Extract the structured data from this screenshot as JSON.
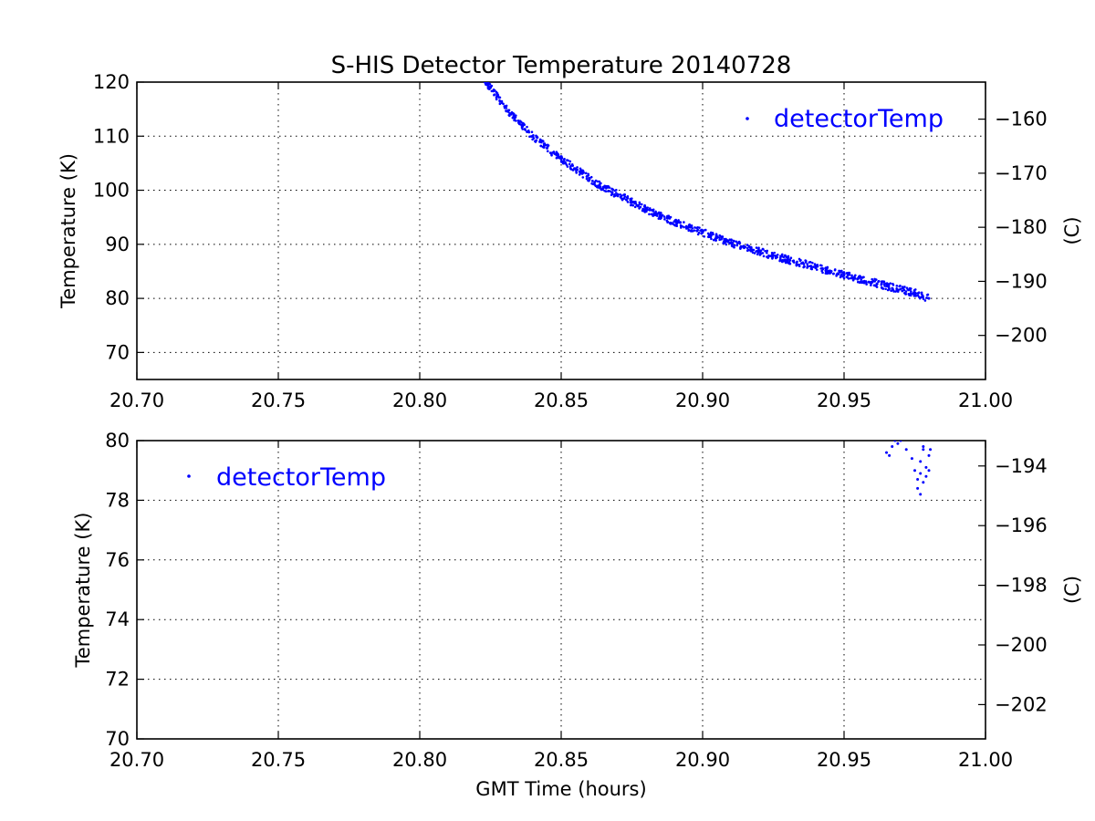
{
  "chart_data": [
    {
      "type": "scatter",
      "title": "S-HIS Detector Temperature 20140728",
      "xlabel": "",
      "ylabel": "Temperature (K)",
      "ylabel_right": "(C)",
      "xlim": [
        20.7,
        21.0
      ],
      "ylim": [
        65,
        120
      ],
      "xticks": [
        "20.70",
        "20.75",
        "20.80",
        "20.85",
        "20.90",
        "20.95",
        "21.00"
      ],
      "yticks": [
        "70",
        "80",
        "90",
        "100",
        "110",
        "120"
      ],
      "yticks_right": [
        "−160",
        "−170",
        "−180",
        "−190",
        "−200"
      ],
      "grid": true,
      "legend": {
        "location": "upper right",
        "entries": [
          "detectorTemp"
        ]
      },
      "series": [
        {
          "name": "detectorTemp",
          "color": "#0000ff",
          "marker": "point",
          "x": [
            20.823,
            20.825,
            20.83,
            20.835,
            20.84,
            20.845,
            20.85,
            20.855,
            20.86,
            20.865,
            20.87,
            20.875,
            20.88,
            20.885,
            20.89,
            20.895,
            20.9,
            20.905,
            20.91,
            20.915,
            20.92,
            20.925,
            20.93,
            20.935,
            20.94,
            20.945,
            20.95,
            20.955,
            20.96,
            20.965,
            20.97,
            20.975,
            20.98
          ],
          "y": [
            120.0,
            119.0,
            115.5,
            112.5,
            110.0,
            107.8,
            105.8,
            104.0,
            102.2,
            100.5,
            99.2,
            97.8,
            96.5,
            95.3,
            94.2,
            93.2,
            92.2,
            91.2,
            90.3,
            89.5,
            88.7,
            87.9,
            87.2,
            86.5,
            85.8,
            85.1,
            84.4,
            83.7,
            83.0,
            82.3,
            81.7,
            81.0,
            80.0
          ]
        }
      ]
    },
    {
      "type": "scatter",
      "title": "",
      "xlabel": "GMT Time (hours)",
      "ylabel": "Temperature (K)",
      "ylabel_right": "(C)",
      "xlim": [
        20.7,
        21.0
      ],
      "ylim": [
        70,
        80
      ],
      "xticks": [
        "20.70",
        "20.75",
        "20.80",
        "20.85",
        "20.90",
        "20.95",
        "21.00"
      ],
      "yticks": [
        "70",
        "72",
        "74",
        "76",
        "78",
        "80"
      ],
      "yticks_right": [
        "−194",
        "−196",
        "−198",
        "−200",
        "−202"
      ],
      "grid": true,
      "legend": {
        "location": "upper left",
        "entries": [
          "detectorTemp"
        ]
      },
      "series": [
        {
          "name": "detectorTemp",
          "color": "#0000ff",
          "marker": "point",
          "x": [
            20.965,
            20.966,
            20.967,
            20.968,
            20.969,
            20.97,
            20.972,
            20.974,
            20.975,
            20.976,
            20.976,
            20.977,
            20.977,
            20.978,
            20.978,
            20.979,
            20.979,
            20.98,
            20.98,
            20.9805,
            20.978,
            20.977
          ],
          "y": [
            79.6,
            79.5,
            79.8,
            80.0,
            79.9,
            80.0,
            79.7,
            79.4,
            79.0,
            78.7,
            78.4,
            78.9,
            79.3,
            78.6,
            79.7,
            79.1,
            78.8,
            79.5,
            79.0,
            79.7,
            79.8,
            78.2
          ]
        }
      ]
    }
  ]
}
